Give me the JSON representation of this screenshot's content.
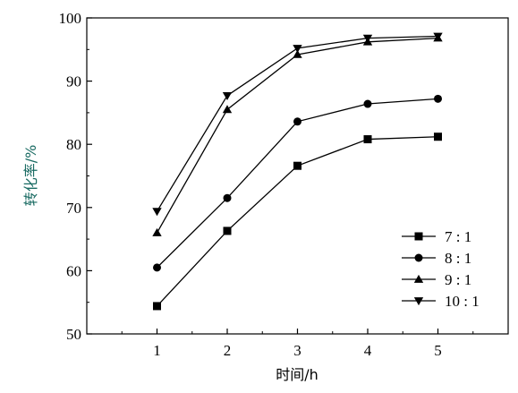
{
  "chart_data": {
    "type": "line",
    "title": "",
    "xlabel": "时间/h",
    "ylabel": "转化率/%",
    "x": [
      1,
      2,
      3,
      4,
      5
    ],
    "xlim": [
      0,
      6
    ],
    "ylim": [
      50,
      100
    ],
    "xticks": [
      "1",
      "2",
      "3",
      "4",
      "5"
    ],
    "yticks": [
      "50",
      "60",
      "70",
      "80",
      "90",
      "100"
    ],
    "grid": false,
    "legend_position": "bottom-right",
    "series": [
      {
        "name": "7 : 1",
        "marker": "square",
        "values": [
          54.4,
          66.3,
          76.6,
          80.8,
          81.2
        ]
      },
      {
        "name": "8 : 1",
        "marker": "circle",
        "values": [
          60.5,
          71.5,
          83.6,
          86.4,
          87.2
        ]
      },
      {
        "name": "9 : 1",
        "marker": "triangle-up",
        "values": [
          66.0,
          85.5,
          94.2,
          96.2,
          96.8
        ]
      },
      {
        "name": "10 : 1",
        "marker": "triangle-down",
        "values": [
          69.4,
          87.7,
          95.2,
          96.8,
          97.1
        ]
      }
    ]
  }
}
